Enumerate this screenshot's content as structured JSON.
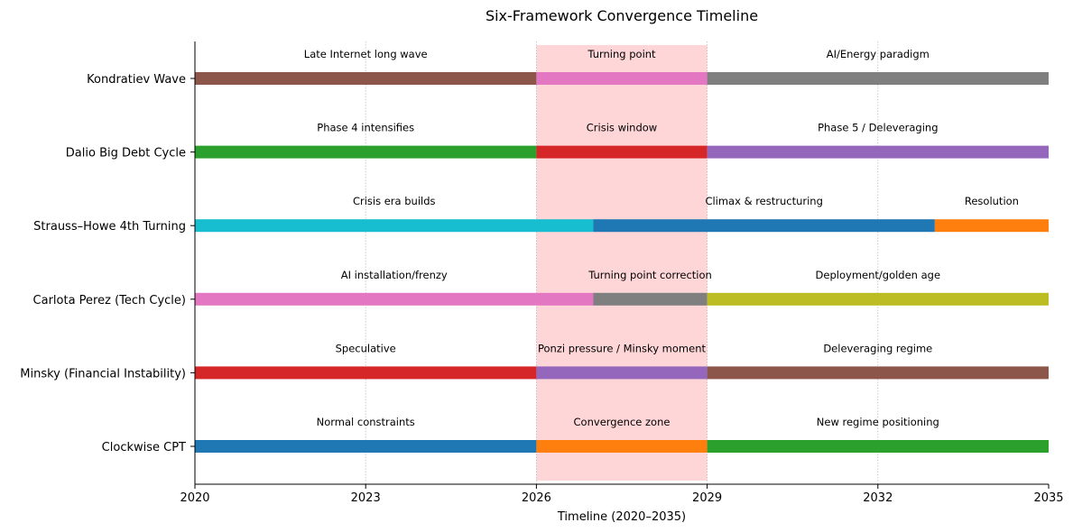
{
  "chart_data": {
    "type": "bar",
    "title": "Six-Framework Convergence Timeline",
    "xlabel": "Timeline (2020–2035)",
    "ylabel": "",
    "xlim": [
      2020,
      2035
    ],
    "xticks": [
      2020,
      2023,
      2026,
      2029,
      2032,
      2035
    ],
    "grid": "x-major dotted",
    "highlight_span": {
      "start": 2026,
      "end": 2029,
      "color": "#ffd6d8"
    },
    "rows": [
      {
        "name": "Kondratiev Wave",
        "segments": [
          {
            "start": 2020,
            "end": 2026,
            "label": "Late Internet long wave",
            "color": "#8c564b"
          },
          {
            "start": 2026,
            "end": 2029,
            "label": "Turning point",
            "color": "#e377c2"
          },
          {
            "start": 2029,
            "end": 2035,
            "label": "AI/Energy paradigm",
            "color": "#7f7f7f"
          }
        ]
      },
      {
        "name": "Dalio Big Debt Cycle",
        "segments": [
          {
            "start": 2020,
            "end": 2026,
            "label": "Phase 4 intensifies",
            "color": "#2ca02c"
          },
          {
            "start": 2026,
            "end": 2029,
            "label": "Crisis window",
            "color": "#d62728"
          },
          {
            "start": 2029,
            "end": 2035,
            "label": "Phase 5 / Deleveraging",
            "color": "#9467bd"
          }
        ]
      },
      {
        "name": "Strauss–Howe 4th Turning",
        "segments": [
          {
            "start": 2020,
            "end": 2027,
            "label": "Crisis era builds",
            "color": "#17becf"
          },
          {
            "start": 2027,
            "end": 2033,
            "label": "Climax & restructuring",
            "color": "#1f77b4"
          },
          {
            "start": 2033,
            "end": 2035,
            "label": "Resolution",
            "color": "#ff7f0e"
          }
        ]
      },
      {
        "name": "Carlota Perez (Tech Cycle)",
        "segments": [
          {
            "start": 2020,
            "end": 2027,
            "label": "AI installation/frenzy",
            "color": "#e377c2"
          },
          {
            "start": 2027,
            "end": 2029,
            "label": "Turning point correction",
            "color": "#7f7f7f"
          },
          {
            "start": 2029,
            "end": 2035,
            "label": "Deployment/golden age",
            "color": "#bcbd22"
          }
        ]
      },
      {
        "name": "Minsky (Financial Instability)",
        "segments": [
          {
            "start": 2020,
            "end": 2026,
            "label": "Speculative",
            "color": "#d62728"
          },
          {
            "start": 2026,
            "end": 2029,
            "label": "Ponzi pressure / Minsky moment",
            "color": "#9467bd"
          },
          {
            "start": 2029,
            "end": 2035,
            "label": "Deleveraging regime",
            "color": "#8c564b"
          }
        ]
      },
      {
        "name": "Clockwise CPT",
        "segments": [
          {
            "start": 2020,
            "end": 2026,
            "label": "Normal constraints",
            "color": "#1f77b4"
          },
          {
            "start": 2026,
            "end": 2029,
            "label": "Convergence zone",
            "color": "#ff7f0e"
          },
          {
            "start": 2029,
            "end": 2035,
            "label": "New regime positioning",
            "color": "#2ca02c"
          }
        ]
      }
    ]
  }
}
